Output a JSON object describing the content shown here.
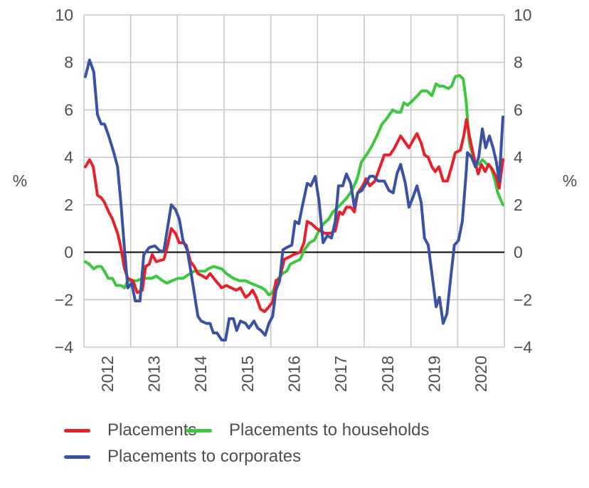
{
  "chart_data": {
    "type": "line",
    "title": "",
    "xlabel": "",
    "ylabel": "%",
    "ylabel_right": "%",
    "ylim": [
      -4,
      10
    ],
    "yticks": [
      -4,
      -2,
      0,
      2,
      4,
      6,
      8,
      10
    ],
    "ytick_labels": [
      "−4",
      "−2",
      "0",
      "2",
      "4",
      "6",
      "8",
      "10"
    ],
    "xlim": [
      2012,
      2021
    ],
    "xtick_labels": [
      "2012",
      "2013",
      "2014",
      "2015",
      "2016",
      "2017",
      "2018",
      "2019",
      "2020"
    ],
    "grid": true,
    "zero_line": true,
    "legend_position": "bottom",
    "series": [
      {
        "name": "Placements",
        "color": "#e8202a",
        "points": [
          [
            2012.03,
            3.6
          ],
          [
            2012.12,
            3.9
          ],
          [
            2012.2,
            3.6
          ],
          [
            2012.29,
            2.4
          ],
          [
            2012.37,
            2.3
          ],
          [
            2012.44,
            2.1
          ],
          [
            2012.53,
            1.7
          ],
          [
            2012.61,
            1.4
          ],
          [
            2012.72,
            0.8
          ],
          [
            2012.79,
            0.2
          ],
          [
            2012.87,
            -0.7
          ],
          [
            2012.94,
            -1.1
          ],
          [
            2013.05,
            -1.2
          ],
          [
            2013.14,
            -1.7
          ],
          [
            2013.25,
            -1.6
          ],
          [
            2013.32,
            -0.6
          ],
          [
            2013.4,
            -0.5
          ],
          [
            2013.46,
            -0.1
          ],
          [
            2013.55,
            -0.4
          ],
          [
            2013.71,
            -0.3
          ],
          [
            2013.78,
            0.2
          ],
          [
            2013.87,
            1.0
          ],
          [
            2013.96,
            0.8
          ],
          [
            2014.04,
            0.4
          ],
          [
            2014.12,
            0.4
          ],
          [
            2014.19,
            0.3
          ],
          [
            2014.28,
            -0.4
          ],
          [
            2014.36,
            -0.6
          ],
          [
            2014.44,
            -0.9
          ],
          [
            2014.54,
            -1.0
          ],
          [
            2014.62,
            -1.1
          ],
          [
            2014.7,
            -0.9
          ],
          [
            2014.82,
            -1.2
          ],
          [
            2014.95,
            -1.5
          ],
          [
            2015.05,
            -1.4
          ],
          [
            2015.15,
            -1.5
          ],
          [
            2015.26,
            -1.6
          ],
          [
            2015.35,
            -1.5
          ],
          [
            2015.46,
            -1.9
          ],
          [
            2015.53,
            -1.8
          ],
          [
            2015.61,
            -1.6
          ],
          [
            2015.69,
            -1.9
          ],
          [
            2015.78,
            -2.4
          ],
          [
            2015.87,
            -2.5
          ],
          [
            2015.96,
            -2.3
          ],
          [
            2016.04,
            -2.1
          ],
          [
            2016.11,
            -1.2
          ],
          [
            2016.19,
            -1.1
          ],
          [
            2016.29,
            -0.3
          ],
          [
            2016.4,
            -0.2
          ],
          [
            2016.49,
            -0.1
          ],
          [
            2016.63,
            0.0
          ],
          [
            2016.71,
            0.4
          ],
          [
            2016.78,
            1.3
          ],
          [
            2016.87,
            1.2
          ],
          [
            2016.98,
            1.0
          ],
          [
            2017.06,
            0.9
          ],
          [
            2017.16,
            0.8
          ],
          [
            2017.28,
            0.8
          ],
          [
            2017.38,
            0.9
          ],
          [
            2017.47,
            1.7
          ],
          [
            2017.54,
            1.6
          ],
          [
            2017.62,
            1.9
          ],
          [
            2017.71,
            1.9
          ],
          [
            2017.79,
            1.7
          ],
          [
            2017.86,
            2.5
          ],
          [
            2017.97,
            2.8
          ],
          [
            2018.04,
            3.1
          ],
          [
            2018.12,
            2.8
          ],
          [
            2018.23,
            3.0
          ],
          [
            2018.32,
            3.5
          ],
          [
            2018.43,
            4.1
          ],
          [
            2018.55,
            4.1
          ],
          [
            2018.65,
            4.4
          ],
          [
            2018.78,
            4.9
          ],
          [
            2018.85,
            4.7
          ],
          [
            2018.96,
            4.4
          ],
          [
            2019.04,
            4.7
          ],
          [
            2019.13,
            5.0
          ],
          [
            2019.22,
            4.6
          ],
          [
            2019.29,
            4.1
          ],
          [
            2019.37,
            4.0
          ],
          [
            2019.45,
            3.6
          ],
          [
            2019.52,
            3.4
          ],
          [
            2019.6,
            3.6
          ],
          [
            2019.69,
            3.0
          ],
          [
            2019.78,
            3.0
          ],
          [
            2019.87,
            3.6
          ],
          [
            2019.95,
            4.2
          ],
          [
            2020.06,
            4.3
          ],
          [
            2020.13,
            4.9
          ],
          [
            2020.19,
            5.6
          ],
          [
            2020.25,
            4.9
          ],
          [
            2020.36,
            3.9
          ],
          [
            2020.44,
            3.3
          ],
          [
            2020.51,
            3.7
          ],
          [
            2020.59,
            3.4
          ],
          [
            2020.66,
            3.7
          ],
          [
            2020.74,
            3.5
          ],
          [
            2020.82,
            3.2
          ],
          [
            2020.89,
            2.7
          ],
          [
            2020.97,
            3.9
          ]
        ]
      },
      {
        "name": "Placements to households",
        "color": "#3cc83c",
        "points": [
          [
            2012.03,
            -0.4
          ],
          [
            2012.11,
            -0.5
          ],
          [
            2012.21,
            -0.7
          ],
          [
            2012.29,
            -0.6
          ],
          [
            2012.37,
            -0.6
          ],
          [
            2012.44,
            -0.8
          ],
          [
            2012.52,
            -1.1
          ],
          [
            2012.61,
            -1.1
          ],
          [
            2012.69,
            -1.4
          ],
          [
            2012.79,
            -1.4
          ],
          [
            2012.87,
            -1.5
          ],
          [
            2012.94,
            -1.2
          ],
          [
            2013.05,
            -1.2
          ],
          [
            2013.14,
            -1.2
          ],
          [
            2013.25,
            -1.1
          ],
          [
            2013.36,
            -1.1
          ],
          [
            2013.45,
            -1.1
          ],
          [
            2013.55,
            -1.0
          ],
          [
            2013.68,
            -1.2
          ],
          [
            2013.78,
            -1.3
          ],
          [
            2013.89,
            -1.2
          ],
          [
            2014.01,
            -1.1
          ],
          [
            2014.12,
            -1.1
          ],
          [
            2014.27,
            -0.9
          ],
          [
            2014.36,
            -0.8
          ],
          [
            2014.5,
            -0.8
          ],
          [
            2014.59,
            -0.8
          ],
          [
            2014.66,
            -0.7
          ],
          [
            2014.77,
            -0.6
          ],
          [
            2014.95,
            -0.7
          ],
          [
            2015.05,
            -0.9
          ],
          [
            2015.2,
            -1.1
          ],
          [
            2015.33,
            -1.2
          ],
          [
            2015.46,
            -1.2
          ],
          [
            2015.56,
            -1.3
          ],
          [
            2015.69,
            -1.4
          ],
          [
            2015.81,
            -1.5
          ],
          [
            2015.88,
            -1.6
          ],
          [
            2015.96,
            -1.8
          ],
          [
            2016.04,
            -1.7
          ],
          [
            2016.13,
            -1.2
          ],
          [
            2016.25,
            -0.9
          ],
          [
            2016.34,
            -0.8
          ],
          [
            2016.42,
            -0.5
          ],
          [
            2016.52,
            -0.4
          ],
          [
            2016.63,
            -0.3
          ],
          [
            2016.72,
            0.1
          ],
          [
            2016.83,
            0.4
          ],
          [
            2016.93,
            0.5
          ],
          [
            2017.03,
            0.9
          ],
          [
            2017.13,
            1.2
          ],
          [
            2017.24,
            1.4
          ],
          [
            2017.33,
            1.7
          ],
          [
            2017.44,
            1.9
          ],
          [
            2017.54,
            2.1
          ],
          [
            2017.63,
            2.3
          ],
          [
            2017.74,
            2.6
          ],
          [
            2017.85,
            3.1
          ],
          [
            2017.94,
            3.8
          ],
          [
            2018.08,
            4.2
          ],
          [
            2018.17,
            4.5
          ],
          [
            2018.27,
            4.9
          ],
          [
            2018.38,
            5.4
          ],
          [
            2018.47,
            5.6
          ],
          [
            2018.61,
            6.0
          ],
          [
            2018.7,
            5.9
          ],
          [
            2018.78,
            5.9
          ],
          [
            2018.85,
            6.3
          ],
          [
            2018.93,
            6.2
          ],
          [
            2019.04,
            6.4
          ],
          [
            2019.14,
            6.6
          ],
          [
            2019.23,
            6.8
          ],
          [
            2019.34,
            6.8
          ],
          [
            2019.45,
            6.6
          ],
          [
            2019.54,
            7.1
          ],
          [
            2019.61,
            7.0
          ],
          [
            2019.69,
            7.0
          ],
          [
            2019.8,
            6.9
          ],
          [
            2019.87,
            7.0
          ],
          [
            2019.95,
            7.4
          ],
          [
            2020.04,
            7.45
          ],
          [
            2020.12,
            7.3
          ],
          [
            2020.18,
            6.4
          ],
          [
            2020.25,
            4.6
          ],
          [
            2020.36,
            3.8
          ],
          [
            2020.45,
            3.7
          ],
          [
            2020.53,
            3.9
          ],
          [
            2020.63,
            3.7
          ],
          [
            2020.71,
            3.6
          ],
          [
            2020.79,
            3.1
          ],
          [
            2020.86,
            2.5
          ],
          [
            2020.97,
            2.0
          ]
        ]
      },
      {
        "name": "Placements to corporates",
        "color": "#3a52a3",
        "points": [
          [
            2012.03,
            7.4
          ],
          [
            2012.12,
            8.1
          ],
          [
            2012.21,
            7.6
          ],
          [
            2012.29,
            5.8
          ],
          [
            2012.37,
            5.4
          ],
          [
            2012.44,
            5.4
          ],
          [
            2012.53,
            4.9
          ],
          [
            2012.64,
            4.2
          ],
          [
            2012.72,
            3.6
          ],
          [
            2012.79,
            2.1
          ],
          [
            2012.87,
            0.1
          ],
          [
            2012.94,
            -1.5
          ],
          [
            2013.02,
            -1.3
          ],
          [
            2013.1,
            -2.05
          ],
          [
            2013.2,
            -2.05
          ],
          [
            2013.28,
            -0.1
          ],
          [
            2013.4,
            0.2
          ],
          [
            2013.52,
            0.27
          ],
          [
            2013.63,
            0.05
          ],
          [
            2013.71,
            0.05
          ],
          [
            2013.78,
            0.9
          ],
          [
            2013.87,
            2.0
          ],
          [
            2013.96,
            1.8
          ],
          [
            2014.04,
            1.4
          ],
          [
            2014.12,
            0.5
          ],
          [
            2014.21,
            0.1
          ],
          [
            2014.28,
            -0.7
          ],
          [
            2014.36,
            -1.7
          ],
          [
            2014.44,
            -2.7
          ],
          [
            2014.51,
            -2.9
          ],
          [
            2014.62,
            -3.0
          ],
          [
            2014.7,
            -3.0
          ],
          [
            2014.77,
            -3.4
          ],
          [
            2014.85,
            -3.4
          ],
          [
            2014.95,
            -3.7
          ],
          [
            2015.03,
            -3.7
          ],
          [
            2015.11,
            -2.8
          ],
          [
            2015.2,
            -2.8
          ],
          [
            2015.27,
            -3.3
          ],
          [
            2015.35,
            -2.9
          ],
          [
            2015.46,
            -3.0
          ],
          [
            2015.53,
            -3.2
          ],
          [
            2015.64,
            -2.9
          ],
          [
            2015.72,
            -3.2
          ],
          [
            2015.79,
            -3.3
          ],
          [
            2015.88,
            -3.5
          ],
          [
            2015.96,
            -3.0
          ],
          [
            2016.04,
            -2.7
          ],
          [
            2016.11,
            -1.6
          ],
          [
            2016.19,
            -1.2
          ],
          [
            2016.26,
            0.1
          ],
          [
            2016.34,
            0.2
          ],
          [
            2016.45,
            0.3
          ],
          [
            2016.52,
            1.3
          ],
          [
            2016.6,
            1.2
          ],
          [
            2016.67,
            1.9
          ],
          [
            2016.78,
            2.9
          ],
          [
            2016.86,
            2.8
          ],
          [
            2016.95,
            3.2
          ],
          [
            2017.03,
            2.2
          ],
          [
            2017.12,
            0.4
          ],
          [
            2017.21,
            0.7
          ],
          [
            2017.3,
            0.6
          ],
          [
            2017.38,
            1.3
          ],
          [
            2017.45,
            2.8
          ],
          [
            2017.54,
            2.8
          ],
          [
            2017.62,
            3.3
          ],
          [
            2017.71,
            2.9
          ],
          [
            2017.79,
            1.9
          ],
          [
            2017.86,
            2.5
          ],
          [
            2017.95,
            2.6
          ],
          [
            2018.04,
            2.9
          ],
          [
            2018.12,
            3.2
          ],
          [
            2018.2,
            3.2
          ],
          [
            2018.3,
            3.0
          ],
          [
            2018.43,
            3.0
          ],
          [
            2018.53,
            2.6
          ],
          [
            2018.62,
            2.5
          ],
          [
            2018.7,
            3.3
          ],
          [
            2018.78,
            3.7
          ],
          [
            2018.88,
            2.9
          ],
          [
            2018.96,
            1.9
          ],
          [
            2019.04,
            2.3
          ],
          [
            2019.13,
            2.8
          ],
          [
            2019.22,
            2.1
          ],
          [
            2019.29,
            0.6
          ],
          [
            2019.37,
            0.3
          ],
          [
            2019.45,
            -0.9
          ],
          [
            2019.54,
            -2.3
          ],
          [
            2019.61,
            -1.9
          ],
          [
            2019.69,
            -3.0
          ],
          [
            2019.77,
            -2.6
          ],
          [
            2019.84,
            -1.3
          ],
          [
            2019.93,
            0.3
          ],
          [
            2020.02,
            0.5
          ],
          [
            2020.1,
            1.3
          ],
          [
            2020.18,
            3.3
          ],
          [
            2020.21,
            4.2
          ],
          [
            2020.3,
            4.0
          ],
          [
            2020.38,
            3.6
          ],
          [
            2020.45,
            4.0
          ],
          [
            2020.53,
            5.2
          ],
          [
            2020.6,
            4.4
          ],
          [
            2020.68,
            4.9
          ],
          [
            2020.76,
            4.4
          ],
          [
            2020.83,
            3.8
          ],
          [
            2020.89,
            3.0
          ],
          [
            2020.97,
            5.7
          ]
        ]
      }
    ]
  }
}
